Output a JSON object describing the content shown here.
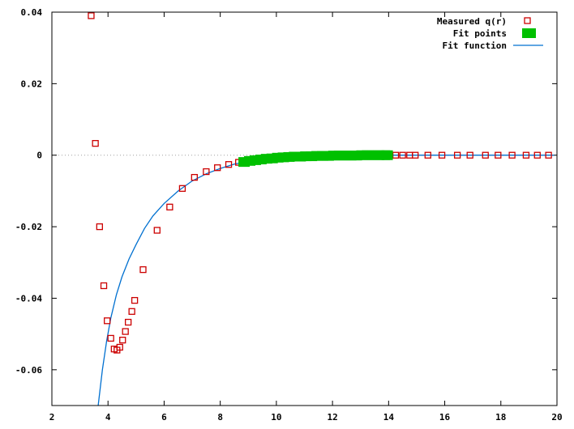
{
  "chart_data": {
    "type": "scatter",
    "title": "",
    "xlabel": "",
    "ylabel": "",
    "xlim": [
      2,
      20
    ],
    "ylim": [
      -0.07,
      0.04
    ],
    "x_ticks": [
      "2",
      "4",
      "6",
      "8",
      "10",
      "12",
      "14",
      "16",
      "18",
      "20"
    ],
    "y_ticks": [
      "0.04",
      "0.02",
      "0",
      "-0.02",
      "-0.04",
      "-0.06"
    ],
    "y_tick_values": [
      0.04,
      0.02,
      0,
      -0.02,
      -0.04,
      -0.06
    ],
    "x_tick_values": [
      2,
      4,
      6,
      8,
      10,
      12,
      14,
      16,
      18,
      20
    ],
    "zero_line": true,
    "legend_placement": "top-right",
    "colors": {
      "measured": "#cc0000",
      "fit_points": "#00c000",
      "fit_function": "#0070d0",
      "zero_line": "#a0a0a0"
    },
    "series": [
      {
        "name": "Measured q(r)",
        "kind": "open-square",
        "points": [
          [
            3.4,
            0.039
          ],
          [
            3.55,
            0.0033
          ],
          [
            3.7,
            -0.02
          ],
          [
            3.85,
            -0.0365
          ],
          [
            3.97,
            -0.0463
          ],
          [
            4.1,
            -0.0512
          ],
          [
            4.22,
            -0.0542
          ],
          [
            4.32,
            -0.0545
          ],
          [
            4.42,
            -0.0537
          ],
          [
            4.52,
            -0.0517
          ],
          [
            4.62,
            -0.0493
          ],
          [
            4.72,
            -0.0467
          ],
          [
            4.85,
            -0.0437
          ],
          [
            4.95,
            -0.0406
          ],
          [
            5.25,
            -0.032
          ],
          [
            5.75,
            -0.021
          ],
          [
            6.2,
            -0.0145
          ],
          [
            6.65,
            -0.0093
          ],
          [
            7.08,
            -0.0062
          ],
          [
            7.5,
            -0.0046
          ],
          [
            7.9,
            -0.0035
          ],
          [
            8.3,
            -0.0026
          ],
          [
            8.65,
            -0.002
          ],
          [
            9.05,
            -0.0015
          ],
          [
            9.35,
            -0.0012
          ],
          [
            9.75,
            -0.0009
          ],
          [
            10.15,
            -0.0007
          ],
          [
            10.55,
            -0.0005
          ],
          [
            10.95,
            -0.0004
          ],
          [
            11.35,
            -0.0003
          ],
          [
            11.75,
            -0.0002
          ],
          [
            12.15,
            -0.0002
          ],
          [
            12.55,
            -0.0001
          ],
          [
            12.95,
            -0.0001
          ],
          [
            13.35,
            -0.0001
          ],
          [
            13.75,
            0.0
          ],
          [
            14.05,
            0.0
          ],
          [
            14.25,
            0.0
          ],
          [
            14.5,
            0.0
          ],
          [
            14.75,
            0.0
          ],
          [
            14.95,
            0.0
          ],
          [
            15.4,
            0.0
          ],
          [
            15.9,
            0.0
          ],
          [
            16.45,
            0.0
          ],
          [
            16.9,
            0.0
          ],
          [
            17.45,
            0.0
          ],
          [
            17.9,
            0.0
          ],
          [
            18.4,
            0.0
          ],
          [
            18.9,
            0.0
          ],
          [
            19.3,
            0.0
          ],
          [
            19.7,
            0.0
          ]
        ]
      },
      {
        "name": "Fit points",
        "kind": "filled-square",
        "x_range": [
          8.85,
          13.95
        ],
        "points": [
          [
            8.85,
            -0.0019
          ],
          [
            9.05,
            -0.0016
          ],
          [
            9.25,
            -0.0014
          ],
          [
            9.45,
            -0.0012
          ],
          [
            9.65,
            -0.001
          ],
          [
            9.85,
            -0.0009
          ],
          [
            10.05,
            -0.0007
          ],
          [
            10.25,
            -0.0006
          ],
          [
            10.45,
            -0.0005
          ],
          [
            10.65,
            -0.0004
          ],
          [
            10.85,
            -0.0004
          ],
          [
            11.05,
            -0.0003
          ],
          [
            11.25,
            -0.0003
          ],
          [
            11.45,
            -0.0002
          ],
          [
            11.65,
            -0.0002
          ],
          [
            11.85,
            -0.0002
          ],
          [
            12.05,
            -0.0001
          ],
          [
            12.25,
            -0.0001
          ],
          [
            12.45,
            -0.0001
          ],
          [
            12.65,
            -0.0001
          ],
          [
            12.85,
            -0.0001
          ],
          [
            13.05,
            0.0
          ],
          [
            13.25,
            0.0
          ],
          [
            13.45,
            0.0
          ],
          [
            13.65,
            0.0
          ],
          [
            13.85,
            0.0
          ],
          [
            13.95,
            0.0
          ]
        ]
      },
      {
        "name": "Fit function",
        "kind": "line",
        "points": [
          [
            3.65,
            -0.07
          ],
          [
            3.8,
            -0.06
          ],
          [
            3.95,
            -0.052
          ],
          [
            4.1,
            -0.0455
          ],
          [
            4.3,
            -0.039
          ],
          [
            4.5,
            -0.034
          ],
          [
            4.75,
            -0.029
          ],
          [
            5.0,
            -0.025
          ],
          [
            5.3,
            -0.0205
          ],
          [
            5.6,
            -0.017
          ],
          [
            6.0,
            -0.0135
          ],
          [
            6.5,
            -0.01
          ],
          [
            7.0,
            -0.0072
          ],
          [
            7.5,
            -0.0052
          ],
          [
            8.0,
            -0.0037
          ],
          [
            8.5,
            -0.0025
          ],
          [
            9.0,
            -0.0017
          ],
          [
            10.0,
            -0.0008
          ],
          [
            11.0,
            -0.0004
          ],
          [
            12.0,
            -0.0002
          ],
          [
            13.0,
            -0.0001
          ],
          [
            14.0,
            0.0
          ],
          [
            16.0,
            0.0
          ],
          [
            18.0,
            0.0
          ],
          [
            19.9,
            0.0
          ]
        ]
      }
    ]
  }
}
